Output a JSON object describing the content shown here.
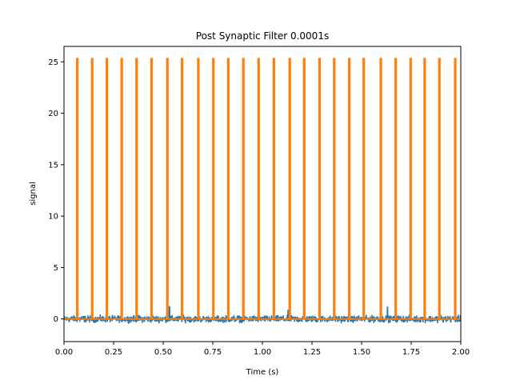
{
  "chart_data": {
    "type": "line",
    "title": "Post Synaptic Filter 0.0001s",
    "xlabel": "Time (s)",
    "ylabel": "signal",
    "xlim": [
      0.0,
      2.0
    ],
    "ylim": [
      -2.2,
      26.5
    ],
    "grid": false,
    "legend": "none",
    "xticks": [
      0.0,
      0.25,
      0.5,
      0.75,
      1.0,
      1.25,
      1.5,
      1.75,
      2.0
    ],
    "xtick_labels": [
      "0.00",
      "0.25",
      "0.50",
      "0.75",
      "1.00",
      "1.25",
      "1.50",
      "1.75",
      "2.00"
    ],
    "yticks": [
      0,
      5,
      10,
      15,
      20,
      25
    ],
    "ytick_labels": [
      "0",
      "5",
      "10",
      "15",
      "20",
      "25"
    ],
    "series": [
      {
        "color": "#1f77b4",
        "kind": "noisy_signal",
        "baseline": 0.0,
        "noise_amplitude": 0.6,
        "peak_points": [
          [
            0.531,
            1.2
          ],
          [
            1.631,
            1.15
          ],
          [
            1.129,
            0.85
          ]
        ]
      },
      {
        "color": "#ff7f0e",
        "kind": "spike_train",
        "baseline": 0.0,
        "spike_height": 25.3,
        "spike_times": [
          0.067,
          0.142,
          0.216,
          0.291,
          0.366,
          0.441,
          0.521,
          0.595,
          0.677,
          0.753,
          0.828,
          0.904,
          0.981,
          1.058,
          1.138,
          1.211,
          1.288,
          1.362,
          1.438,
          1.511,
          1.597,
          1.672,
          1.747,
          1.818,
          1.892,
          1.972
        ]
      }
    ]
  }
}
